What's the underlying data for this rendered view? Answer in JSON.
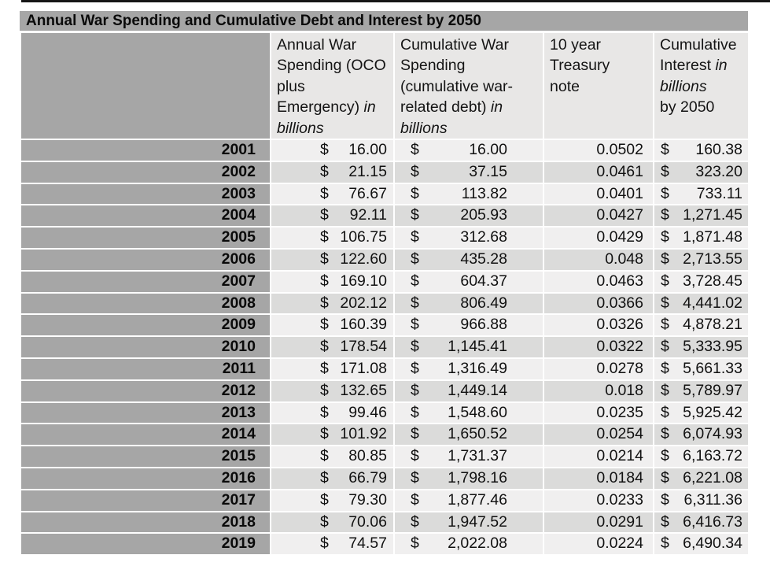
{
  "title": "Annual War Spending and Cumulative Debt and Interest by 2050",
  "colors": {
    "title_bar_bg": "#a6a6a6",
    "year_column_bg": "#a6a6a6",
    "header_bg": "#e8e7e6",
    "row_light_bg": "#f0efef",
    "row_dark_bg": "#dbdbda",
    "top_rule": "#161616",
    "text": "#111111"
  },
  "table": {
    "currency_symbol": "$",
    "headers": {
      "year": "",
      "annual": {
        "main": "Annual War\nSpending (OCO\nplus\nEmergency) ",
        "italic": "in\nbillions"
      },
      "cumulative": {
        "main": "Cumulative War\nSpending\n(cumulative war-\nrelated debt) ",
        "italic": "in\nbillions"
      },
      "treasury": {
        "main": "10 year\nTreasury\nnote"
      },
      "interest": {
        "main": "Cumulative\nInterest ",
        "italic": "in\nbillions",
        "suffix": "\nby 2050"
      }
    },
    "rows": [
      {
        "year": "2001",
        "annual": "16.00",
        "cumulative": "16.00",
        "treasury": "0.0502",
        "interest": "160.38"
      },
      {
        "year": "2002",
        "annual": "21.15",
        "cumulative": "37.15",
        "treasury": "0.0461",
        "interest": "323.20"
      },
      {
        "year": "2003",
        "annual": "76.67",
        "cumulative": "113.82",
        "treasury": "0.0401",
        "interest": "733.11"
      },
      {
        "year": "2004",
        "annual": "92.11",
        "cumulative": "205.93",
        "treasury": "0.0427",
        "interest": "1,271.45"
      },
      {
        "year": "2005",
        "annual": "106.75",
        "cumulative": "312.68",
        "treasury": "0.0429",
        "interest": "1,871.48"
      },
      {
        "year": "2006",
        "annual": "122.60",
        "cumulative": "435.28",
        "treasury": "0.048",
        "interest": "2,713.55"
      },
      {
        "year": "2007",
        "annual": "169.10",
        "cumulative": "604.37",
        "treasury": "0.0463",
        "interest": "3,728.45"
      },
      {
        "year": "2008",
        "annual": "202.12",
        "cumulative": "806.49",
        "treasury": "0.0366",
        "interest": "4,441.02"
      },
      {
        "year": "2009",
        "annual": "160.39",
        "cumulative": "966.88",
        "treasury": "0.0326",
        "interest": "4,878.21"
      },
      {
        "year": "2010",
        "annual": "178.54",
        "cumulative": "1,145.41",
        "treasury": "0.0322",
        "interest": "5,333.95"
      },
      {
        "year": "2011",
        "annual": "171.08",
        "cumulative": "1,316.49",
        "treasury": "0.0278",
        "interest": "5,661.33"
      },
      {
        "year": "2012",
        "annual": "132.65",
        "cumulative": "1,449.14",
        "treasury": "0.018",
        "interest": "5,789.97"
      },
      {
        "year": "2013",
        "annual": "99.46",
        "cumulative": "1,548.60",
        "treasury": "0.0235",
        "interest": "5,925.42"
      },
      {
        "year": "2014",
        "annual": "101.92",
        "cumulative": "1,650.52",
        "treasury": "0.0254",
        "interest": "6,074.93"
      },
      {
        "year": "2015",
        "annual": "80.85",
        "cumulative": "1,731.37",
        "treasury": "0.0214",
        "interest": "6,163.72"
      },
      {
        "year": "2016",
        "annual": "66.79",
        "cumulative": "1,798.16",
        "treasury": "0.0184",
        "interest": "6,221.08"
      },
      {
        "year": "2017",
        "annual": "79.30",
        "cumulative": "1,877.46",
        "treasury": "0.0233",
        "interest": "6,311.36"
      },
      {
        "year": "2018",
        "annual": "70.06",
        "cumulative": "1,947.52",
        "treasury": "0.0291",
        "interest": "6,416.73"
      },
      {
        "year": "2019",
        "annual": "74.57",
        "cumulative": "2,022.08",
        "treasury": "0.0224",
        "interest": "6,490.34"
      }
    ]
  }
}
